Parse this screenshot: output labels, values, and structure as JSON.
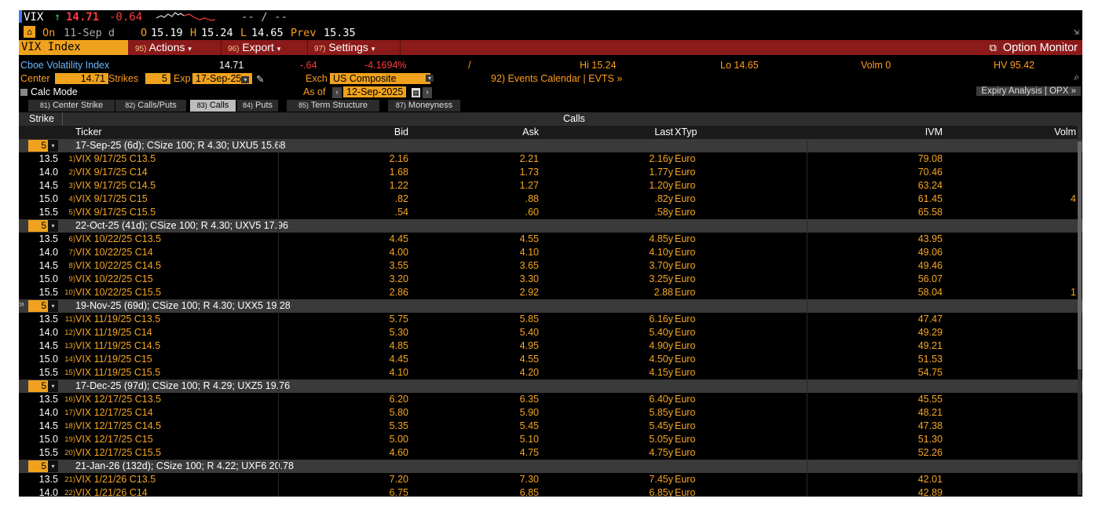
{
  "quote": {
    "symbol": "VIX",
    "arrow": "↑",
    "last": "14.71",
    "change": "-0.64",
    "bidask": "-- / --"
  },
  "session": {
    "on_label": "On",
    "date": "11-Sep d",
    "o_label": "O",
    "o": "15.19",
    "h_label": "H",
    "h": "15.24",
    "l_label": "L",
    "l": "14.65",
    "prev_label": "Prev",
    "prev": "15.35"
  },
  "toolbar": {
    "ticker": "VIX Index",
    "actions": {
      "num": "95)",
      "label": "Actions"
    },
    "export": {
      "num": "96)",
      "label": "Export"
    },
    "settings": {
      "num": "97)",
      "label": "Settings"
    },
    "monitor": "Option Monitor"
  },
  "info": {
    "name": "Cboe Volatility Index",
    "last": "14.71",
    "chg": "-.64",
    "pct": "-4.1694%",
    "slash": "/",
    "hi": "Hi 15.24",
    "lo": "Lo 14.65",
    "volm": "Volm 0",
    "hv": "HV 95.42"
  },
  "controls": {
    "center_label": "Center",
    "center_value": "14.71",
    "strikes_label": "Strikes",
    "strikes_value": "5",
    "exp_label": "Exp",
    "exp_value": "17-Sep-25",
    "exch_label": "Exch",
    "exch_value": "US Composite",
    "events": "92) Events Calendar | EVTS »",
    "calc_mode": "Calc Mode",
    "asof_label": "As of",
    "asof_value": "12-Sep-2025",
    "expiry_analysis": "Expiry Analysis | OPX »"
  },
  "tabs": [
    {
      "num": "81)",
      "label": "Center Strike"
    },
    {
      "num": "82)",
      "label": "Calls/Puts"
    },
    {
      "num": "83)",
      "label": "Calls"
    },
    {
      "num": "84)",
      "label": "Puts"
    },
    {
      "num": "85)",
      "label": "Term Structure"
    },
    {
      "num": "87)",
      "label": "Moneyness"
    }
  ],
  "grid": {
    "strike_header": "Strike",
    "section_header": "Calls",
    "columns": {
      "ticker": "Ticker",
      "bid": "Bid",
      "ask": "Ask",
      "last": "Last",
      "xtyp": "XTyp",
      "ivm": "IVM",
      "volm": "Volm"
    },
    "expiries": [
      {
        "strikes": "5",
        "label": "17-Sep-25 (6d); CSize 100; R 4.30; UXU5 15.68",
        "rows": [
          {
            "strike": "13.5",
            "idx": "1)",
            "ticker": "VIX 9/17/25 C13.5",
            "bid": "2.16",
            "ask": "2.21",
            "last": "2.16y",
            "xtyp": "Euro",
            "ivm": "79.08",
            "volm": ""
          },
          {
            "strike": "14.0",
            "idx": "2)",
            "ticker": "VIX 9/17/25 C14",
            "bid": "1.68",
            "ask": "1.73",
            "last": "1.77y",
            "xtyp": "Euro",
            "ivm": "70.46",
            "volm": ""
          },
          {
            "strike": "14.5",
            "idx": "3)",
            "ticker": "VIX 9/17/25 C14.5",
            "bid": "1.22",
            "ask": "1.27",
            "last": "1.20y",
            "xtyp": "Euro",
            "ivm": "63.24",
            "volm": ""
          },
          {
            "strike": "15.0",
            "idx": "4)",
            "ticker": "VIX 9/17/25 C15",
            "bid": ".82",
            "ask": ".88",
            "last": ".82y",
            "xtyp": "Euro",
            "ivm": "61.45",
            "volm": "4"
          },
          {
            "strike": "15.5",
            "idx": "5)",
            "ticker": "VIX 9/17/25 C15.5",
            "bid": ".54",
            "ask": ".60",
            "last": ".58y",
            "xtyp": "Euro",
            "ivm": "65.58",
            "volm": ""
          }
        ]
      },
      {
        "strikes": "5",
        "label": "22-Oct-25 (41d); CSize 100; R 4.30; UXV5 17.96",
        "rows": [
          {
            "strike": "13.5",
            "idx": "6)",
            "ticker": "VIX 10/22/25 C13.5",
            "bid": "4.45",
            "ask": "4.55",
            "last": "4.85y",
            "xtyp": "Euro",
            "ivm": "43.95",
            "volm": ""
          },
          {
            "strike": "14.0",
            "idx": "7)",
            "ticker": "VIX 10/22/25 C14",
            "bid": "4.00",
            "ask": "4.10",
            "last": "4.10y",
            "xtyp": "Euro",
            "ivm": "49.06",
            "volm": ""
          },
          {
            "strike": "14.5",
            "idx": "8)",
            "ticker": "VIX 10/22/25 C14.5",
            "bid": "3.55",
            "ask": "3.65",
            "last": "3.70y",
            "xtyp": "Euro",
            "ivm": "49.46",
            "volm": ""
          },
          {
            "strike": "15.0",
            "idx": "9)",
            "ticker": "VIX 10/22/25 C15",
            "bid": "3.20",
            "ask": "3.30",
            "last": "3.25y",
            "xtyp": "Euro",
            "ivm": "56.07",
            "volm": ""
          },
          {
            "strike": "15.5",
            "idx": "10)",
            "ticker": "VIX 10/22/25 C15.5",
            "bid": "2.86",
            "ask": "2.92",
            "last": "2.88",
            "xtyp": "Euro",
            "ivm": "58.04",
            "volm": "1"
          }
        ]
      },
      {
        "strikes": "5",
        "label": "19-Nov-25 (69d); CSize 100; R 4.30; UXX5 19.28",
        "rows": [
          {
            "strike": "13.5",
            "idx": "11)",
            "ticker": "VIX 11/19/25 C13.5",
            "bid": "5.75",
            "ask": "5.85",
            "last": "6.16y",
            "xtyp": "Euro",
            "ivm": "47.47",
            "volm": ""
          },
          {
            "strike": "14.0",
            "idx": "12)",
            "ticker": "VIX 11/19/25 C14",
            "bid": "5.30",
            "ask": "5.40",
            "last": "5.40y",
            "xtyp": "Euro",
            "ivm": "49.29",
            "volm": ""
          },
          {
            "strike": "14.5",
            "idx": "13)",
            "ticker": "VIX 11/19/25 C14.5",
            "bid": "4.85",
            "ask": "4.95",
            "last": "4.90y",
            "xtyp": "Euro",
            "ivm": "49.21",
            "volm": ""
          },
          {
            "strike": "15.0",
            "idx": "14)",
            "ticker": "VIX 11/19/25 C15",
            "bid": "4.45",
            "ask": "4.55",
            "last": "4.50y",
            "xtyp": "Euro",
            "ivm": "51.53",
            "volm": ""
          },
          {
            "strike": "15.5",
            "idx": "15)",
            "ticker": "VIX 11/19/25 C15.5",
            "bid": "4.10",
            "ask": "4.20",
            "last": "4.15y",
            "xtyp": "Euro",
            "ivm": "54.75",
            "volm": ""
          }
        ]
      },
      {
        "strikes": "5",
        "label": "17-Dec-25 (97d); CSize 100; R 4.29; UXZ5 19.76",
        "rows": [
          {
            "strike": "13.5",
            "idx": "16)",
            "ticker": "VIX 12/17/25 C13.5",
            "bid": "6.20",
            "ask": "6.35",
            "last": "6.40y",
            "xtyp": "Euro",
            "ivm": "45.55",
            "volm": ""
          },
          {
            "strike": "14.0",
            "idx": "17)",
            "ticker": "VIX 12/17/25 C14",
            "bid": "5.80",
            "ask": "5.90",
            "last": "5.85y",
            "xtyp": "Euro",
            "ivm": "48.21",
            "volm": ""
          },
          {
            "strike": "14.5",
            "idx": "18)",
            "ticker": "VIX 12/17/25 C14.5",
            "bid": "5.35",
            "ask": "5.45",
            "last": "5.45y",
            "xtyp": "Euro",
            "ivm": "47.38",
            "volm": ""
          },
          {
            "strike": "15.0",
            "idx": "19)",
            "ticker": "VIX 12/17/25 C15",
            "bid": "5.00",
            "ask": "5.10",
            "last": "5.05y",
            "xtyp": "Euro",
            "ivm": "51.30",
            "volm": ""
          },
          {
            "strike": "15.5",
            "idx": "20)",
            "ticker": "VIX 12/17/25 C15.5",
            "bid": "4.60",
            "ask": "4.75",
            "last": "4.75y",
            "xtyp": "Euro",
            "ivm": "52.26",
            "volm": ""
          }
        ]
      },
      {
        "strikes": "5",
        "label": "21-Jan-26 (132d); CSize 100; R 4.22; UXF6 20.78",
        "rows": [
          {
            "strike": "13.5",
            "idx": "21)",
            "ticker": "VIX 1/21/26 C13.5",
            "bid": "7.20",
            "ask": "7.30",
            "last": "7.45y",
            "xtyp": "Euro",
            "ivm": "42.01",
            "volm": ""
          },
          {
            "strike": "14.0",
            "idx": "22)",
            "ticker": "VIX 1/21/26 C14",
            "bid": "6.75",
            "ask": "6.85",
            "last": "6.85y",
            "xtyp": "Euro",
            "ivm": "42.89",
            "volm": ""
          }
        ]
      }
    ]
  },
  "colors": {
    "accent": "#f0a21e",
    "menubar": "#8b1a1a",
    "up": "#2ad44a",
    "down": "#ff3b3b",
    "text_orange": "#f5a623"
  },
  "icons": [
    "sparkline-icon",
    "popout-icon",
    "pencil-icon",
    "calendar-icon",
    "chevron-down-icon",
    "expand-icon",
    "collapse-icon"
  ]
}
